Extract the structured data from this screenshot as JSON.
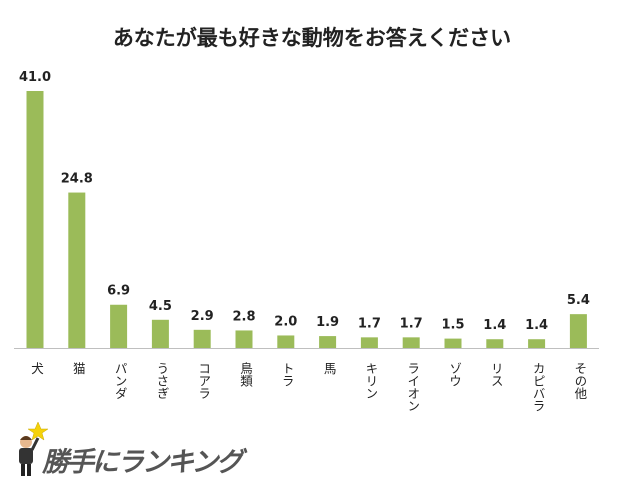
{
  "chart_data": {
    "type": "bar",
    "title": "あなたが最も好きな動物をお答えください",
    "categories": [
      "犬",
      "猫",
      "パンダ",
      "うさぎ",
      "コアラ",
      "鳥類",
      "トラ",
      "馬",
      "キリン",
      "ライオン",
      "ゾウ",
      "リス",
      "カピバラ",
      "その他"
    ],
    "values": [
      41.0,
      24.8,
      6.9,
      4.5,
      2.9,
      2.8,
      2.0,
      1.9,
      1.7,
      1.7,
      1.5,
      1.4,
      1.4,
      5.4
    ],
    "xlabel": "",
    "ylabel": "",
    "ylim": [
      0,
      41
    ],
    "grid": false,
    "legend": "none",
    "bar_color": "#9bbb59",
    "axis_color": "#bfbfbf"
  },
  "logo": {
    "text": "勝手にランキング"
  }
}
